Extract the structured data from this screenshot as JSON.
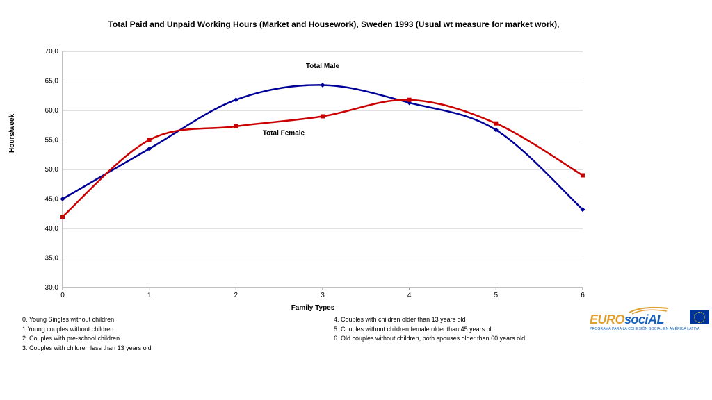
{
  "chart": {
    "type": "line",
    "title": "Total Paid and Unpaid Working Hours (Market and Housework), Sweden 1993 (Usual wt measure for market work),",
    "xlabel": "Family Types",
    "ylabel": "Hours/week",
    "x_categories": [
      0,
      1,
      2,
      3,
      4,
      5,
      6
    ],
    "ylim": [
      30,
      70
    ],
    "ytick_step": 5,
    "yticklabels": [
      "30,0",
      "35,0",
      "40,0",
      "45,0",
      "50,0",
      "55,0",
      "60,0",
      "65,0",
      "70,0"
    ],
    "background_color": "#ffffff",
    "grid_color": "#c0c0c0",
    "axis_color": "#808080",
    "tick_fontsize": 10,
    "label_fontsize": 10,
    "title_fontsize": 12,
    "series": [
      {
        "name": "Total Male",
        "label_x": 3,
        "label_y": 67.2,
        "color": "#000099",
        "marker": "diamond",
        "marker_size": 7,
        "line_width": 2.5,
        "smooth": true,
        "data": [
          45.0,
          53.5,
          61.8,
          64.3,
          61.3,
          56.7,
          43.2
        ]
      },
      {
        "name": "Total Female",
        "label_x": 2.55,
        "label_y": 55.8,
        "color": "#cc0000",
        "marker": "square",
        "marker_size": 6,
        "line_width": 2.5,
        "smooth": true,
        "data": [
          42.0,
          55.0,
          57.3,
          59.0,
          61.8,
          57.8,
          49.0
        ]
      }
    ]
  },
  "notes_left": [
    "0. Young Singles without children",
    "1.Young couples without children",
    "2. Couples with pre-school children",
    "3. Couples with  children less than 13 years old"
  ],
  "notes_right": [
    "4. Couples with  children older than 13 years old",
    "5. Couples without  children  female older than 45 years old",
    "6. Old couples without children, both spouses older than 60 years old"
  ],
  "logo": {
    "text_gold": "EURO",
    "text_blue": "sociAL",
    "subtitle": "PROGRAMA PARA LA COHESIÓN SOCIAL EN AMÉRICA LATINA",
    "gold_color": "#e0a030",
    "blue_color": "#1560bd",
    "swoosh_color": "#e0a030",
    "eu_flag_bg": "#003399",
    "eu_flag_stars": "#ffcc00"
  }
}
